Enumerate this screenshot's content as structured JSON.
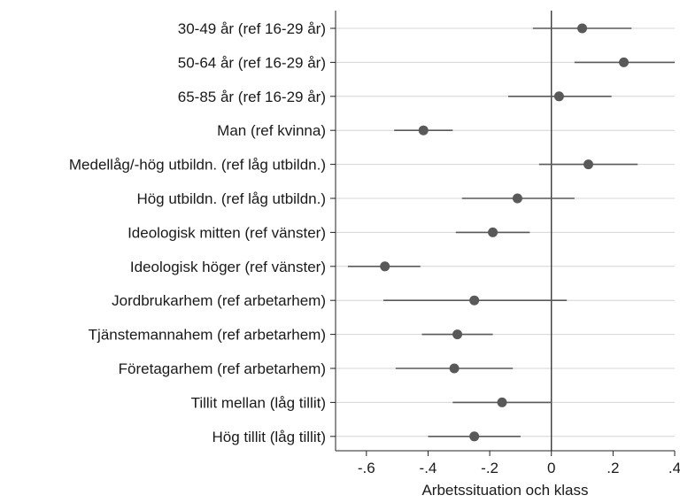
{
  "chart_data": {
    "type": "scatter",
    "subtype": "coefficient-plot",
    "xlabel": "Arbetssituation och klass",
    "xlim": [
      -0.7,
      0.4
    ],
    "xticks": [
      -0.6,
      -0.4,
      -0.2,
      0,
      0.2,
      0.4
    ],
    "xtick_labels": [
      "-.6",
      "-.4",
      "-.2",
      "0",
      ".2",
      ".4"
    ],
    "reference_line_x": 0,
    "grid": "horizontal",
    "colors": {
      "marker": "#595959",
      "ci": "#595959",
      "grid": "#d4d4d4",
      "axis": "#222222"
    },
    "categories": [
      "30-49 år (ref 16-29 år)",
      "50-64 år (ref 16-29 år)",
      "65-85 år (ref 16-29 år)",
      "Man (ref kvinna)",
      "Medellåg/-hög utbildn. (ref låg utbildn.)",
      "Hög utbildn. (ref låg utbildn.)",
      "Ideologisk mitten (ref vänster)",
      "Ideologisk höger (ref vänster)",
      "Jordbrukarhem (ref arbetarhem)",
      "Tjänstemannahem (ref arbetarhem)",
      "Företagarhem (ref arbetarhem)",
      "Tillit mellan (låg tillit)",
      "Hög tillit (låg tillit)"
    ],
    "estimates": [
      0.1,
      0.235,
      0.025,
      -0.415,
      0.12,
      -0.11,
      -0.19,
      -0.54,
      -0.25,
      -0.305,
      -0.315,
      -0.16,
      -0.25
    ],
    "ci_low": [
      -0.06,
      0.075,
      -0.14,
      -0.51,
      -0.04,
      -0.29,
      -0.31,
      -0.66,
      -0.545,
      -0.42,
      -0.505,
      -0.32,
      -0.4
    ],
    "ci_high": [
      0.26,
      0.4,
      0.195,
      -0.32,
      0.28,
      0.075,
      -0.07,
      -0.425,
      0.05,
      -0.19,
      -0.125,
      0.0,
      -0.1
    ]
  }
}
